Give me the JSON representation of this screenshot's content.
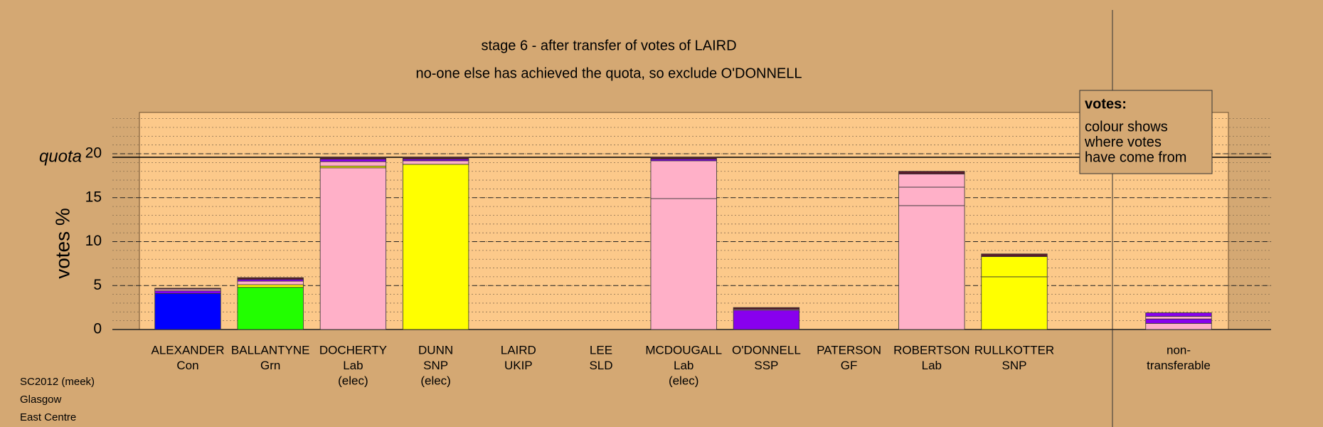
{
  "chart_data": {
    "type": "stacked-bar",
    "title": "stage 6 - after transfer of votes of LAIRD",
    "subtitle": "no-one else has achieved the quota, so exclude O'DONNELL",
    "y_label": "votes %",
    "quota": 19.6,
    "quota_label": "quota",
    "categories": [
      [
        "ALEXANDER",
        "Con"
      ],
      [
        "BALLANTYNE",
        "Grn"
      ],
      [
        "DOCHERTY",
        "Lab",
        "(elec)"
      ],
      [
        "DUNN",
        "SNP",
        "(elec)"
      ],
      [
        "LAIRD",
        "UKIP"
      ],
      [
        "LEE",
        "SLD"
      ],
      [
        "MCDOUGALL",
        "Lab",
        "(elec)"
      ],
      [
        "O'DONNELL",
        "SSP"
      ],
      [
        "PATERSON",
        "GF"
      ],
      [
        "ROBERTSON",
        "Lab"
      ],
      [
        "RULLKOTTER",
        "SNP"
      ],
      [
        "non-",
        "transferable"
      ]
    ],
    "stacks": [
      [
        {
          "color": "#0000ff",
          "value": 4.1
        },
        {
          "color": "#8800ee",
          "value": 0.3
        },
        {
          "color": "#ffb0c8",
          "value": 0.2
        },
        {
          "color": "#5a1a2a",
          "value": 0.1
        }
      ],
      [
        {
          "color": "#22ff00",
          "value": 4.8
        },
        {
          "color": "#ffff00",
          "value": 0.3
        },
        {
          "color": "#ffb0c8",
          "value": 0.4
        },
        {
          "color": "#8800ee",
          "value": 0.2
        },
        {
          "color": "#5a1a2a",
          "value": 0.2
        }
      ],
      [
        {
          "color": "#ffb0c8",
          "value": 18.4
        },
        {
          "color": "#ffff00",
          "value": 0.2
        },
        {
          "color": "#ffb0c8",
          "value": 0.5
        },
        {
          "color": "#8800ee",
          "value": 0.3
        },
        {
          "color": "#5a1a2a",
          "value": 0.2
        }
      ],
      [
        {
          "color": "#ffff00",
          "value": 18.8
        },
        {
          "color": "#ffb0c8",
          "value": 0.4
        },
        {
          "color": "#8800ee",
          "value": 0.2
        },
        {
          "color": "#5a1a2a",
          "value": 0.2
        }
      ],
      [],
      [],
      [
        {
          "color": "#ffb0c8",
          "value": 14.9
        },
        {
          "color": "#ffb0c8",
          "value": 4.3
        },
        {
          "color": "#8800ee",
          "value": 0.2
        },
        {
          "color": "#5a1a2a",
          "value": 0.2
        }
      ],
      [
        {
          "color": "#8800ee",
          "value": 2.2
        },
        {
          "color": "#ffb0c8",
          "value": 0.1
        },
        {
          "color": "#5a1a2a",
          "value": 0.2
        }
      ],
      [],
      [
        {
          "color": "#ffb0c8",
          "value": 14.1
        },
        {
          "color": "#ffb0c8",
          "value": 2.1
        },
        {
          "color": "#ffb0c8",
          "value": 1.5
        },
        {
          "color": "#5a1a2a",
          "value": 0.3
        }
      ],
      [
        {
          "color": "#ffff00",
          "value": 6.0
        },
        {
          "color": "#ffff00",
          "value": 2.3
        },
        {
          "color": "#5a1a2a",
          "value": 0.3
        }
      ],
      [
        {
          "color": "#ffb0c8",
          "value": 0.7
        },
        {
          "color": "#8800ee",
          "value": 0.5
        },
        {
          "color": "#ffb0c8",
          "value": 0.3
        },
        {
          "color": "#8800ee",
          "value": 0.4
        }
      ]
    ],
    "ylim": [
      0,
      24.7
    ],
    "yticks": [
      0,
      5,
      10,
      15,
      20
    ],
    "minor_grid_step": 1,
    "note": {
      "title": "votes:",
      "lines": [
        "colour shows",
        "where votes",
        "have come from"
      ]
    },
    "footer": [
      "SC2012 (meek)",
      "Glasgow",
      "East Centre"
    ]
  }
}
